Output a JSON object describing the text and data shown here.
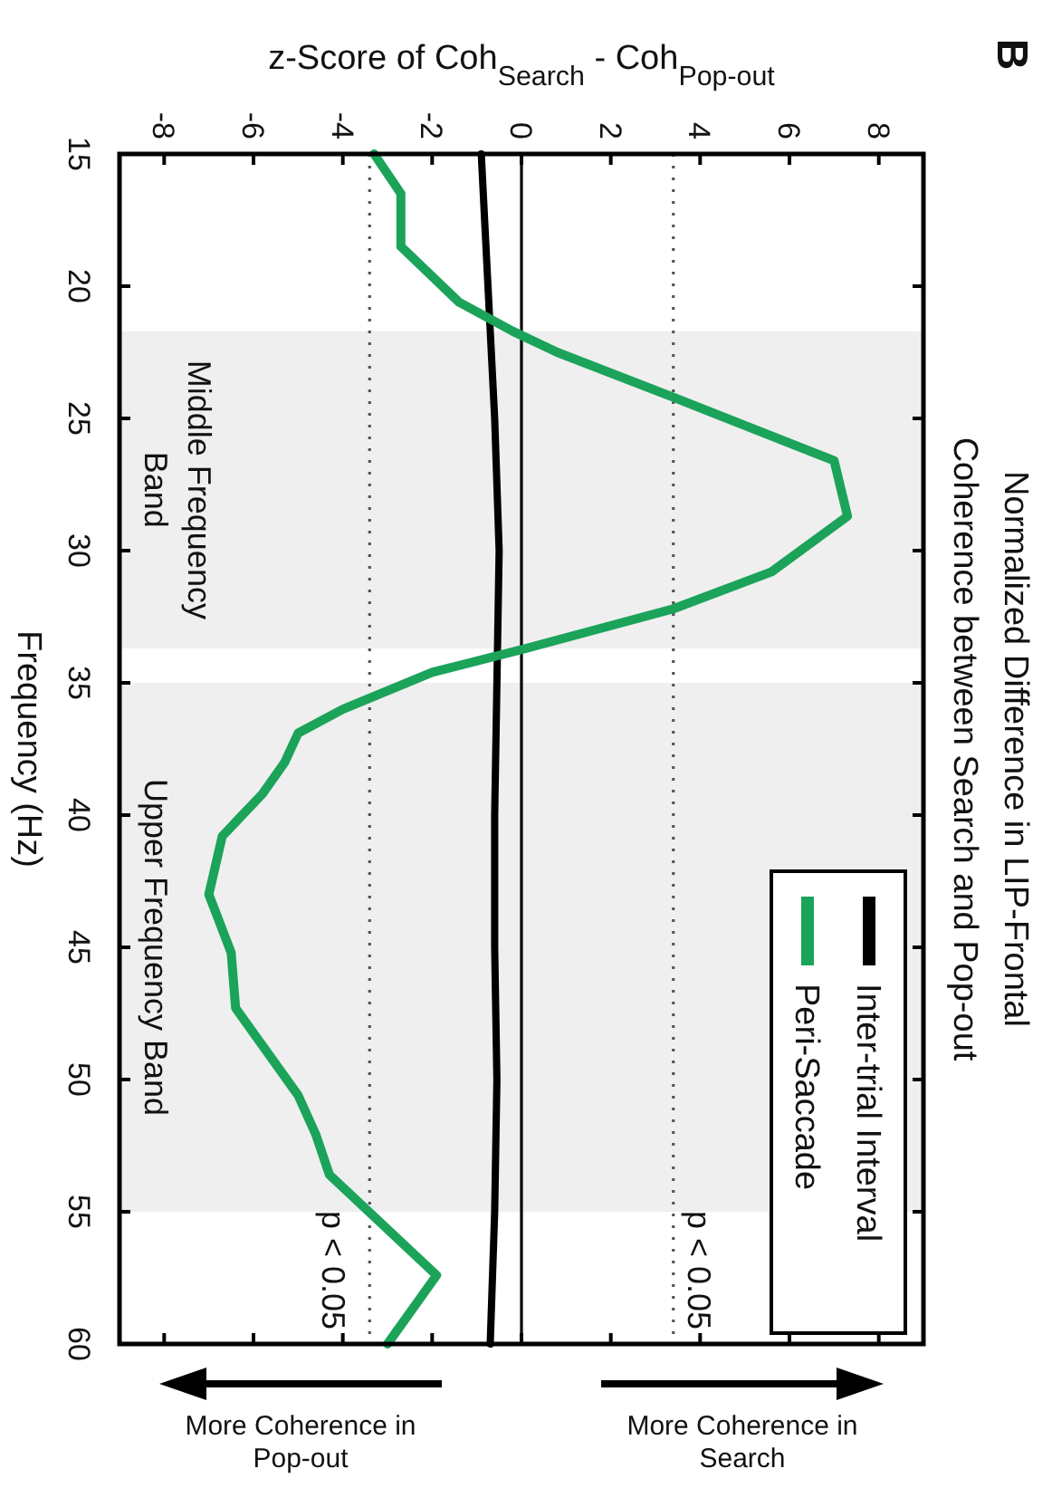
{
  "chart_data": {
    "type": "line",
    "title": "Normalized Difference in LIP-Frontal Coherence between Search and Pop-out",
    "xlabel": "z-Score of Coh$_{Search}$ - Coh$_{Pop-out}$",
    "ylabel": "Frequency (Hz)",
    "annotations": [
      "B",
      "More Coherence in Search",
      "More Coherence in Pop-out"
    ],
    "xlim": [
      -9,
      9
    ],
    "xticks": [
      -8,
      -6,
      -4,
      -2,
      0,
      2,
      4,
      6,
      8
    ],
    "ylim": [
      60,
      15
    ],
    "yticks": [
      15,
      20,
      25,
      30,
      35,
      40,
      45,
      50,
      55,
      60
    ],
    "grid": false,
    "legend": "bottom right",
    "marker": "none",
    "series": [
      {
        "name": "Inter-trial Interval",
        "color": "#000000",
        "x": [
          -0.9,
          -0.75,
          -0.6,
          -0.5,
          -0.55,
          -0.6,
          -0.6,
          -0.55,
          -0.6,
          -0.7
        ],
        "values": [
          15,
          20,
          25,
          30,
          35,
          40,
          45,
          50,
          55,
          60
        ]
      },
      {
        "name": "Peri-Saccade",
        "color": "#1ba35a",
        "x": [
          -3.3,
          -2.7,
          -2.7,
          -1.4,
          -0.2,
          0.8,
          3.4,
          7,
          7.3,
          5.6,
          3.4,
          0.1,
          -2,
          -4,
          -5,
          -5.3,
          -5.8,
          -6.7,
          -7,
          -6.5,
          -6.4,
          -5,
          -4.6,
          -4.3,
          -1.9,
          -3
        ],
        "values": [
          15,
          16.5,
          18.5,
          20.6,
          21.7,
          22.5,
          24.2,
          26.6,
          28.7,
          30.8,
          32.2,
          33.7,
          34.6,
          36,
          36.9,
          38,
          39.2,
          40.8,
          43,
          45.2,
          47.3,
          50.6,
          52.1,
          53.6,
          57.4,
          60
        ]
      }
    ],
    "ref_lines": [
      {
        "axis": "x",
        "value": 0,
        "color": "#000000",
        "line_style": "solid"
      },
      {
        "axis": "x",
        "value": 3.4,
        "label": "p < 0.05",
        "color": "#555555",
        "line_style": "dotted"
      },
      {
        "axis": "x",
        "value": -3.4,
        "label": "p < 0.05",
        "color": "#555555",
        "line_style": "dotted"
      }
    ],
    "bands": [
      {
        "axis": "y",
        "from": 21.7,
        "to": 33.7,
        "label": "Middle Frequency Band",
        "color": "#efefef"
      },
      {
        "axis": "y",
        "from": 35,
        "to": 55,
        "label": "Upper Frequency Band",
        "color": "#efefef"
      }
    ]
  }
}
